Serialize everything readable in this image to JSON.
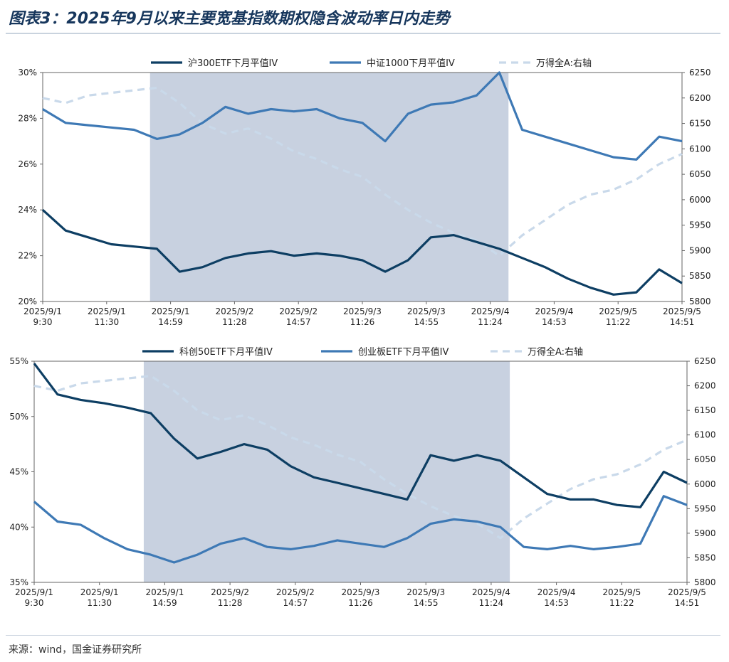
{
  "title": "图表3：2025年9月以来主要宽基指数期权隐含波动率日内走势",
  "source": "来源：wind，国金证券研究所",
  "colors": {
    "dark": "#0d3e63",
    "mid": "#3e79b5",
    "light": "#c9d9ea",
    "shade": "#c8d1e0"
  },
  "chart_data": [
    {
      "type": "line",
      "left_axis": {
        "ticks": [
          "20%",
          "22%",
          "24%",
          "26%",
          "28%",
          "30%"
        ],
        "ylim": [
          20,
          30
        ]
      },
      "right_axis": {
        "ticks": [
          "5800",
          "5850",
          "5900",
          "5950",
          "6000",
          "6050",
          "6100",
          "6150",
          "6200",
          "6250"
        ],
        "ylim": [
          5800,
          6250
        ]
      },
      "x_tick_labels": [
        [
          "2025/9/1",
          "9:30"
        ],
        [
          "2025/9/1",
          "11:30"
        ],
        [
          "2025/9/1",
          "14:59"
        ],
        [
          "2025/9/2",
          "11:28"
        ],
        [
          "2025/9/2",
          "14:57"
        ],
        [
          "2025/9/3",
          "11:26"
        ],
        [
          "2025/9/3",
          "14:55"
        ],
        [
          "2025/9/4",
          "11:24"
        ],
        [
          "2025/9/4",
          "14:53"
        ],
        [
          "2025/9/5",
          "11:22"
        ],
        [
          "2025/9/5",
          "14:51"
        ]
      ],
      "shaded_range": [
        "2025/9/1 14:59",
        "2025/9/4 14:53"
      ],
      "x": [
        0,
        0.5,
        1,
        1.5,
        2,
        2.5,
        3,
        3.5,
        4,
        4.5,
        5,
        5.5,
        6,
        6.5,
        7,
        7.5,
        8,
        8.5,
        9,
        9.5,
        10
      ],
      "series": [
        {
          "name": "沪300ETF下月平值IV",
          "axis": "left",
          "style": "solid-dark",
          "values": [
            24.0,
            23.1,
            22.8,
            22.5,
            22.4,
            22.3,
            21.3,
            21.5,
            21.9,
            22.1,
            22.2,
            22.0,
            22.1,
            22.0,
            21.8,
            21.3,
            21.8,
            22.8,
            22.9,
            22.6,
            22.3
          ]
        },
        {
          "name": "中证1000下月平值IV",
          "axis": "left",
          "style": "solid-mid",
          "values": [
            28.4,
            27.8,
            27.7,
            27.6,
            27.5,
            27.1,
            27.3,
            27.8,
            28.5,
            28.2,
            28.4,
            28.3,
            28.4,
            28.0,
            27.8,
            27.0,
            28.2,
            28.6,
            28.7,
            29.0,
            30.0
          ]
        },
        {
          "name": "万得全A:右轴",
          "axis": "right",
          "style": "dashed-light",
          "values": [
            6200,
            6190,
            6205,
            6210,
            6215,
            6220,
            6190,
            6150,
            6130,
            6140,
            6120,
            6095,
            6080,
            6060,
            6045,
            6010,
            5980,
            5955,
            5935,
            5920,
            5890
          ]
        }
      ],
      "series_tail": {
        "x": [
          10,
          10.5,
          11,
          11.5,
          12,
          12.5,
          13,
          13.5,
          14
        ],
        "values_dark": [
          22.3,
          21.9,
          21.5,
          21.0,
          20.6,
          20.3,
          20.4,
          21.4,
          20.8
        ],
        "values_mid": [
          30.0,
          27.5,
          27.2,
          26.9,
          26.6,
          26.3,
          26.2,
          27.2,
          27.0
        ],
        "values_light": [
          5890,
          5930,
          5960,
          5990,
          6010,
          6020,
          6040,
          6070,
          6090
        ]
      }
    },
    {
      "type": "line",
      "left_axis": {
        "ticks": [
          "35%",
          "40%",
          "45%",
          "50%",
          "55%"
        ],
        "ylim": [
          35,
          55
        ]
      },
      "right_axis": {
        "ticks": [
          "5800",
          "5850",
          "5900",
          "5950",
          "6000",
          "6050",
          "6100",
          "6150",
          "6200",
          "6250"
        ],
        "ylim": [
          5800,
          6250
        ]
      },
      "x_tick_labels": [
        [
          "2025/9/1",
          "9:30"
        ],
        [
          "2025/9/1",
          "11:30"
        ],
        [
          "2025/9/1",
          "14:59"
        ],
        [
          "2025/9/2",
          "11:28"
        ],
        [
          "2025/9/2",
          "14:57"
        ],
        [
          "2025/9/3",
          "11:26"
        ],
        [
          "2025/9/3",
          "14:55"
        ],
        [
          "2025/9/4",
          "11:24"
        ],
        [
          "2025/9/4",
          "14:53"
        ],
        [
          "2025/9/5",
          "11:22"
        ],
        [
          "2025/9/5",
          "14:51"
        ]
      ],
      "shaded_range": [
        "2025/9/1 14:59",
        "2025/9/4 14:53"
      ],
      "x": [
        0,
        0.5,
        1,
        1.5,
        2,
        2.5,
        3,
        3.5,
        4,
        4.5,
        5,
        5.5,
        6,
        6.5,
        7,
        7.5,
        8,
        8.5,
        9,
        9.5,
        10,
        10.5,
        11,
        11.5,
        12,
        12.5,
        13,
        13.5,
        14
      ],
      "series": [
        {
          "name": "科创50ETF下月平值IV",
          "axis": "left",
          "style": "solid-dark",
          "values": [
            54.8,
            52.0,
            51.5,
            51.2,
            50.8,
            50.3,
            48.0,
            46.2,
            46.8,
            47.5,
            47.0,
            45.5,
            44.5,
            44.0,
            43.5,
            43.0,
            42.5,
            46.5,
            46.0,
            46.5,
            46.0,
            44.5,
            43.0,
            42.5,
            42.5,
            42.0,
            41.8,
            45.0,
            44.0
          ]
        },
        {
          "name": "创业板ETF下月平值IV",
          "axis": "left",
          "style": "solid-mid",
          "values": [
            42.3,
            40.5,
            40.2,
            39.0,
            38.0,
            37.5,
            36.8,
            37.5,
            38.5,
            39.0,
            38.2,
            38.0,
            38.3,
            38.8,
            38.5,
            38.2,
            39.0,
            40.3,
            40.7,
            40.5,
            40.0,
            38.2,
            38.0,
            38.3,
            38.0,
            38.2,
            38.5,
            42.8,
            42.0
          ]
        },
        {
          "name": "万得全A:右轴",
          "axis": "right",
          "style": "dashed-light",
          "values": [
            6200,
            6190,
            6205,
            6210,
            6215,
            6220,
            6190,
            6150,
            6130,
            6140,
            6120,
            6095,
            6080,
            6060,
            6045,
            6010,
            5980,
            5955,
            5935,
            5920,
            5890,
            5930,
            5960,
            5990,
            6010,
            6020,
            6040,
            6070,
            6090
          ]
        }
      ]
    }
  ]
}
